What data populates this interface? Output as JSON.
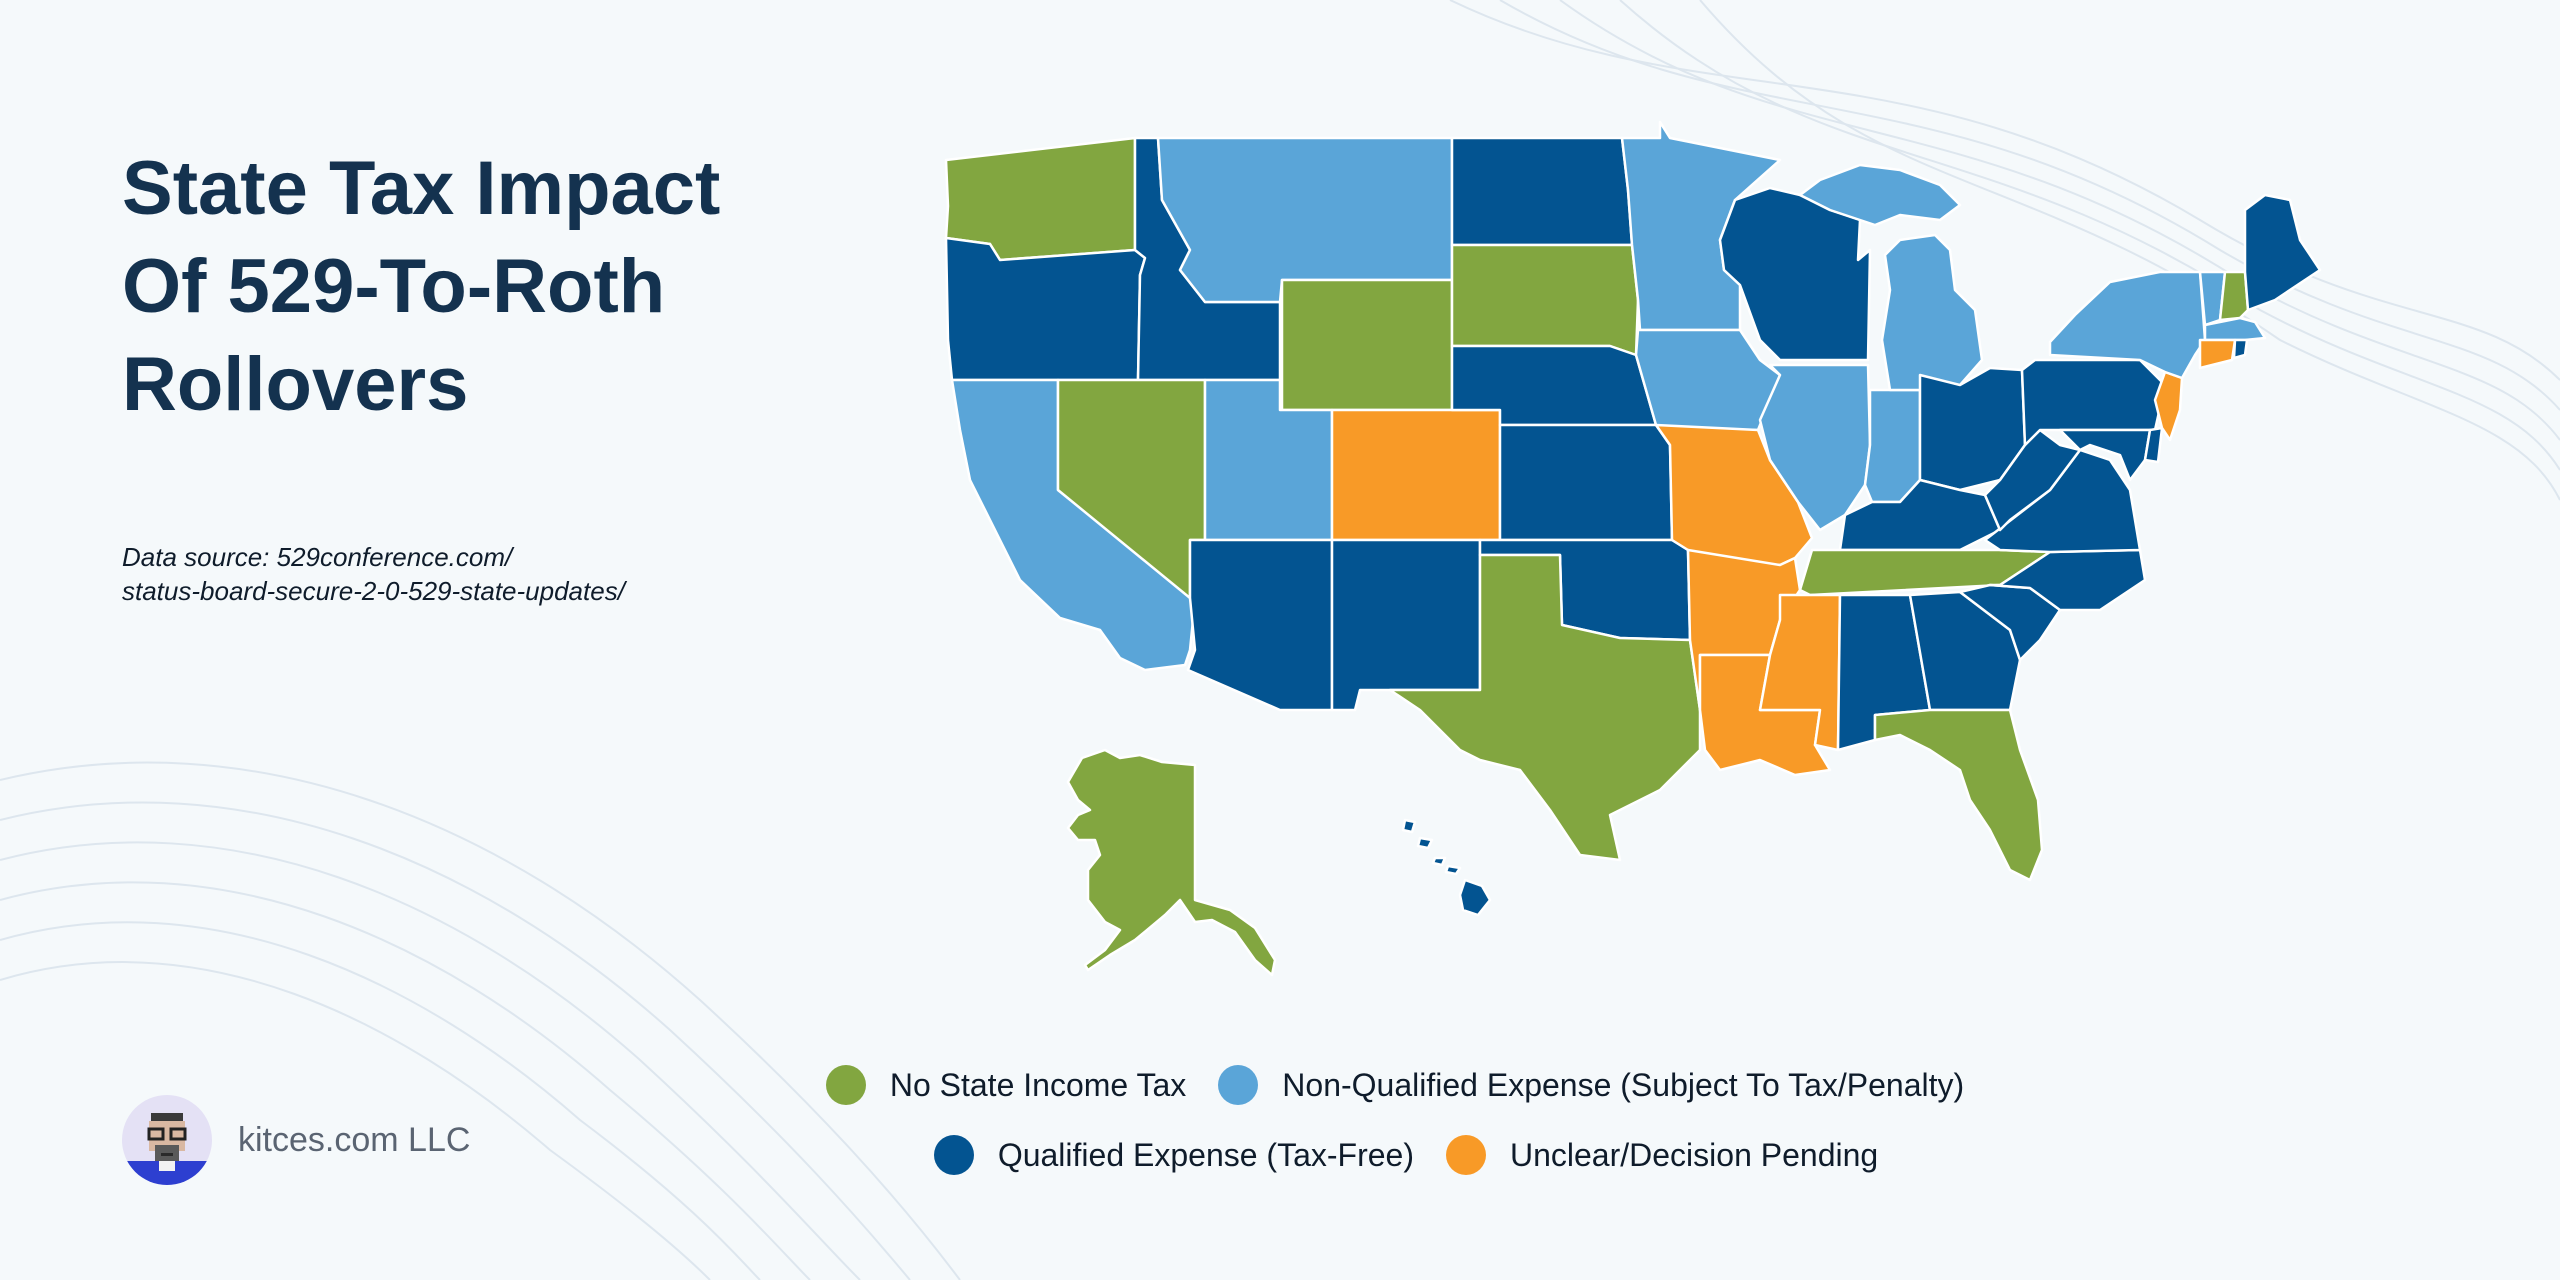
{
  "title_lines": [
    "State Tax Impact",
    "Of 529-To-Roth",
    "Rollovers"
  ],
  "source_lines": [
    "Data source: 529conference.com/",
    "status-board-secure-2-0-529-state-updates/"
  ],
  "brand": {
    "name": "kitces.com LLC"
  },
  "colors": {
    "no_tax": "#82a640",
    "nonqualified": "#5aa5d8",
    "qualified": "#035491",
    "unclear": "#f89a27",
    "background": "#f5f9fb",
    "title": "#14324f"
  },
  "legend": [
    {
      "category": "no_tax",
      "label": "No State Income Tax"
    },
    {
      "category": "nonqualified",
      "label": "Non-Qualified Expense (Subject To Tax/Penalty)"
    },
    {
      "category": "qualified",
      "label": "Qualified Expense (Tax-Free)"
    },
    {
      "category": "unclear",
      "label": "Unclear/Decision Pending"
    }
  ],
  "states": {
    "AK": "no_tax",
    "AL": "qualified",
    "AR": "unclear",
    "AZ": "qualified",
    "CA": "nonqualified",
    "CO": "unclear",
    "CT": "unclear",
    "DE": "qualified",
    "FL": "no_tax",
    "GA": "qualified",
    "HI": "qualified",
    "IA": "nonqualified",
    "ID": "qualified",
    "IL": "nonqualified",
    "IN": "nonqualified",
    "KS": "qualified",
    "KY": "qualified",
    "LA": "unclear",
    "MA": "nonqualified",
    "MD": "qualified",
    "ME": "qualified",
    "MI": "nonqualified",
    "MN": "nonqualified",
    "MO": "unclear",
    "MS": "unclear",
    "MT": "nonqualified",
    "NC": "qualified",
    "ND": "qualified",
    "NE": "qualified",
    "NH": "no_tax",
    "NJ": "unclear",
    "NM": "qualified",
    "NV": "no_tax",
    "NY": "nonqualified",
    "OH": "qualified",
    "OK": "qualified",
    "OR": "qualified",
    "PA": "qualified",
    "RI": "qualified",
    "SC": "qualified",
    "SD": "no_tax",
    "TN": "no_tax",
    "TX": "no_tax",
    "UT": "nonqualified",
    "VA": "qualified",
    "VT": "nonqualified",
    "WA": "no_tax",
    "WI": "qualified",
    "WV": "qualified",
    "WY": "no_tax"
  }
}
